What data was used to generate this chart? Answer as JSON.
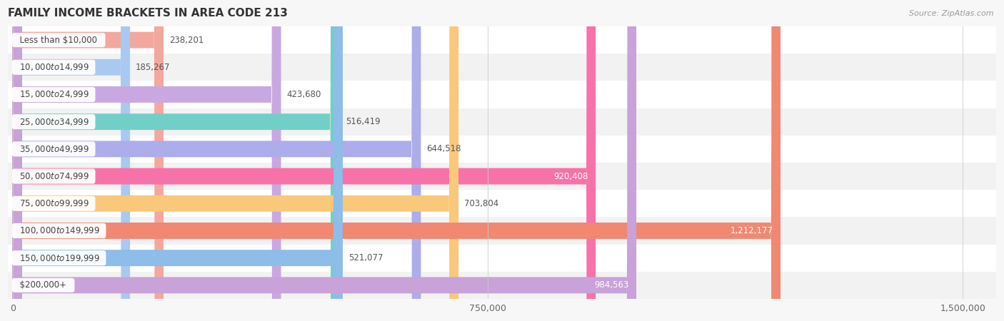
{
  "title": "FAMILY INCOME BRACKETS IN AREA CODE 213",
  "source": "Source: ZipAtlas.com",
  "categories": [
    "Less than $10,000",
    "$10,000 to $14,999",
    "$15,000 to $24,999",
    "$25,000 to $34,999",
    "$35,000 to $49,999",
    "$50,000 to $74,999",
    "$75,000 to $99,999",
    "$100,000 to $149,999",
    "$150,000 to $199,999",
    "$200,000+"
  ],
  "values": [
    238201,
    185267,
    423680,
    516419,
    644518,
    920408,
    703804,
    1212177,
    521077,
    984563
  ],
  "labels": [
    "238,201",
    "185,267",
    "423,680",
    "516,419",
    "644,518",
    "920,408",
    "703,804",
    "1,212,177",
    "521,077",
    "984,563"
  ],
  "bar_colors": [
    "#f2a89e",
    "#a9c9f0",
    "#c9a8e2",
    "#72cfc7",
    "#adadec",
    "#f772a8",
    "#f9c87a",
    "#f08872",
    "#8dbde8",
    "#c8a2d8"
  ],
  "label_inside": [
    false,
    false,
    false,
    false,
    false,
    true,
    false,
    true,
    false,
    true
  ],
  "xlim_max": 1500000,
  "xtick_labels": [
    "0",
    "750,000",
    "1,500,000"
  ],
  "background_color": "#f7f7f7",
  "row_colors": [
    "#ffffff",
    "#f2f2f2"
  ],
  "title_fontsize": 11,
  "source_fontsize": 8,
  "label_fontsize": 8.5,
  "category_fontsize": 8.5
}
